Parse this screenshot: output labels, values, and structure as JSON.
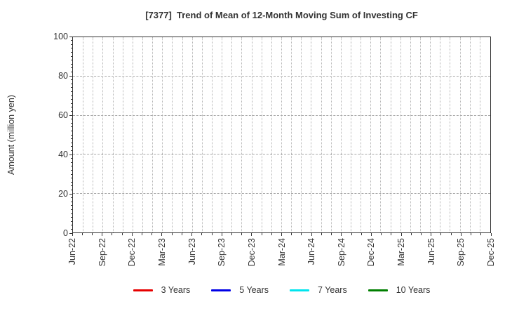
{
  "chart_data": {
    "type": "line",
    "title": "[7377]  Trend of Mean of 12-Month Moving Sum of Investing CF",
    "ylabel": "Amount (million yen)",
    "xlabel": "",
    "ylim": [
      0,
      100
    ],
    "yticks": [
      0,
      20,
      40,
      60,
      80,
      100
    ],
    "x_tick_labels": [
      "Jun-22",
      "Sep-22",
      "Dec-22",
      "Mar-23",
      "Jun-23",
      "Sep-23",
      "Dec-23",
      "Mar-24",
      "Jun-24",
      "Sep-24",
      "Dec-24",
      "Mar-25",
      "Jun-25",
      "Sep-25",
      "Dec-25"
    ],
    "months_per_labeled_tick": 3,
    "grid": true,
    "legend_position": "bottom",
    "series": [
      {
        "name": "3 Years",
        "color": "#E60000",
        "values": []
      },
      {
        "name": "5 Years",
        "color": "#0000E6",
        "values": []
      },
      {
        "name": "7 Years",
        "color": "#00E5EE",
        "values": []
      },
      {
        "name": "10 Years",
        "color": "#007F00",
        "values": []
      }
    ],
    "note": "No data lines are visible in the plot area; only the empty grid is rendered."
  },
  "colors": {
    "background": "#FFFFFF",
    "text": "#333333",
    "spine": "#333333",
    "grid_vertical": "#B5B5B5",
    "grid_horizontal": "#A8A8A8"
  }
}
